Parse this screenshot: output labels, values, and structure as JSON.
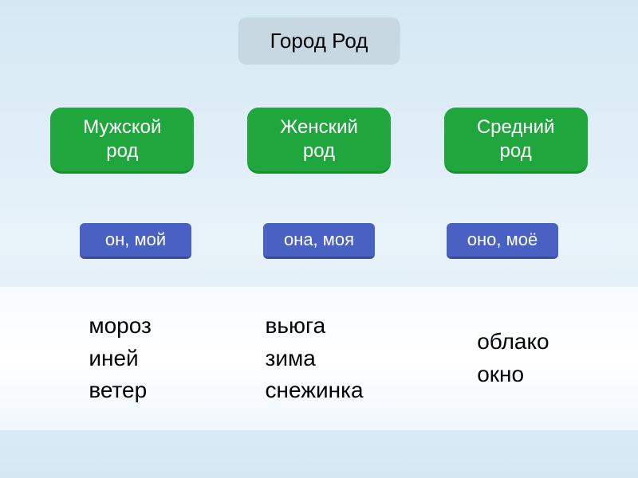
{
  "title": {
    "text": "Город Род",
    "bg": "#c7d8e3",
    "color": "#000000"
  },
  "genders": [
    {
      "line1": "Мужской",
      "line2": "род",
      "bg": "#1fa63d",
      "color": "#ffffff"
    },
    {
      "line1": "Женский",
      "line2": "род",
      "bg": "#1fa63d",
      "color": "#ffffff"
    },
    {
      "line1": "Средний",
      "line2": "род",
      "bg": "#1fa63d",
      "color": "#ffffff"
    }
  ],
  "pronouns": [
    {
      "text": "он, мой",
      "bg": "#4a61c4",
      "color": "#ffffff"
    },
    {
      "text": "она, моя",
      "bg": "#4a61c4",
      "color": "#ffffff"
    },
    {
      "text": "оно, моё",
      "bg": "#4a61c4",
      "color": "#ffffff"
    }
  ],
  "words": [
    {
      "w1": "мороз",
      "w2": "иней",
      "w3": "ветер"
    },
    {
      "w1": "вьюга",
      "w2": "зима",
      "w3": "снежинка"
    },
    {
      "w1": "облако",
      "w2": "окно",
      "w3": ""
    }
  ]
}
